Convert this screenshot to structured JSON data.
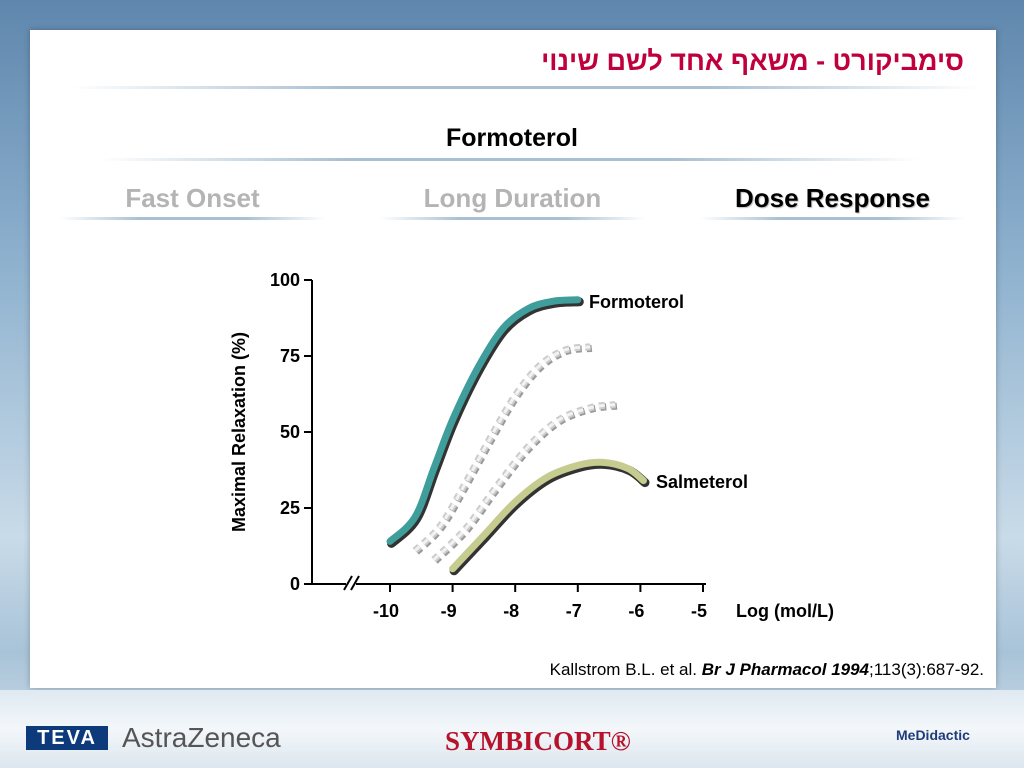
{
  "header": {
    "title_hebrew": "סימביקורט - משאף אחד לשם שינוי",
    "subtitle": "Formoterol"
  },
  "tabs": [
    {
      "label": "Fast Onset",
      "state": "inactive"
    },
    {
      "label": "Long Duration",
      "state": "inactive"
    },
    {
      "label": "Dose Response",
      "state": "active"
    }
  ],
  "chart_data": {
    "type": "line",
    "title": "",
    "xlabel": "Log (mol/L)",
    "ylabel": "Maximal Relaxation (%)",
    "xlim": [
      -11.2,
      -5
    ],
    "ylim": [
      0,
      100
    ],
    "x_ticks": [
      "-10",
      "-9",
      "-8",
      "-7",
      "-6",
      "-5"
    ],
    "y_ticks": [
      "0",
      "25",
      "50",
      "75",
      "100"
    ],
    "axis_break": true,
    "series": [
      {
        "name": "Formoterol",
        "style": "solid",
        "color": "#3f9e9b",
        "points": [
          [
            -10,
            14
          ],
          [
            -9.6,
            22
          ],
          [
            -9.3,
            38
          ],
          [
            -9,
            54
          ],
          [
            -8.6,
            71
          ],
          [
            -8.2,
            84
          ],
          [
            -7.8,
            90.5
          ],
          [
            -7.4,
            93
          ],
          [
            -7,
            93.5
          ]
        ]
      },
      {
        "name": "",
        "style": "dotted",
        "color": "#cccccc",
        "points": [
          [
            -9.6,
            11
          ],
          [
            -9.2,
            19
          ],
          [
            -8.8,
            33
          ],
          [
            -8.4,
            48
          ],
          [
            -8,
            62
          ],
          [
            -7.6,
            72
          ],
          [
            -7.2,
            77
          ],
          [
            -6.8,
            78
          ]
        ]
      },
      {
        "name": "",
        "style": "dotted",
        "color": "#cccccc",
        "points": [
          [
            -9.3,
            8
          ],
          [
            -8.8,
            18
          ],
          [
            -8.3,
            32
          ],
          [
            -7.8,
            45
          ],
          [
            -7.3,
            54
          ],
          [
            -6.8,
            58
          ],
          [
            -6.4,
            59
          ]
        ]
      },
      {
        "name": "Salmeterol",
        "style": "solid",
        "color": "#c6cc8f",
        "points": [
          [
            -9,
            5
          ],
          [
            -8.5,
            16
          ],
          [
            -8,
            27
          ],
          [
            -7.5,
            35
          ],
          [
            -7,
            39
          ],
          [
            -6.6,
            40
          ],
          [
            -6.2,
            38
          ],
          [
            -5.95,
            34
          ]
        ]
      }
    ]
  },
  "citation": {
    "authors": "Kallstrom B.L. et al. ",
    "journal": "Br J Pharmacol 1994",
    "ref": ";113(3):687-92."
  },
  "footer": {
    "logo_teva": "TEVA",
    "logo_astrazeneca": "AstraZeneca",
    "logo_symbicort": "SYMBICORT®",
    "logo_medidactic": "MeDidactic"
  }
}
